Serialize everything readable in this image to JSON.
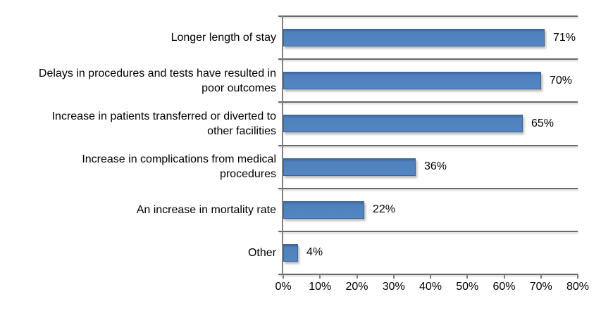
{
  "chart_data": {
    "type": "bar",
    "orientation": "horizontal",
    "title": "",
    "xlabel": "",
    "ylabel": "",
    "categories": [
      "Longer length of stay",
      "Delays in procedures and tests have resulted in poor outcomes",
      "Increase in patients transferred or diverted to other facilities",
      "Increase in complications from medical procedures",
      "An increase in mortality rate",
      "Other"
    ],
    "categories_display": [
      "Longer length of stay",
      "Delays in procedures and tests have resulted in\npoor outcomes",
      "Increase in patients transferred or diverted to\nother facilities",
      "Increase in complications from medical\nprocedures",
      "An increase in mortality rate",
      "Other"
    ],
    "values": [
      71,
      70,
      65,
      36,
      22,
      4
    ],
    "value_labels": [
      "71%",
      "70%",
      "65%",
      "36%",
      "22%",
      "4%"
    ],
    "x_ticks": [
      "0%",
      "10%",
      "20%",
      "30%",
      "40%",
      "50%",
      "60%",
      "70%",
      "80%"
    ],
    "xlim": [
      0,
      80
    ],
    "grid": "category-separators",
    "legend": "none",
    "colors": {
      "bar_fill": "#4f81bd",
      "bar_border": "#3c6497",
      "gridline": "#696969",
      "axis_line": "#7f7f7f",
      "text": "#000000",
      "background": "#ffffff"
    }
  }
}
